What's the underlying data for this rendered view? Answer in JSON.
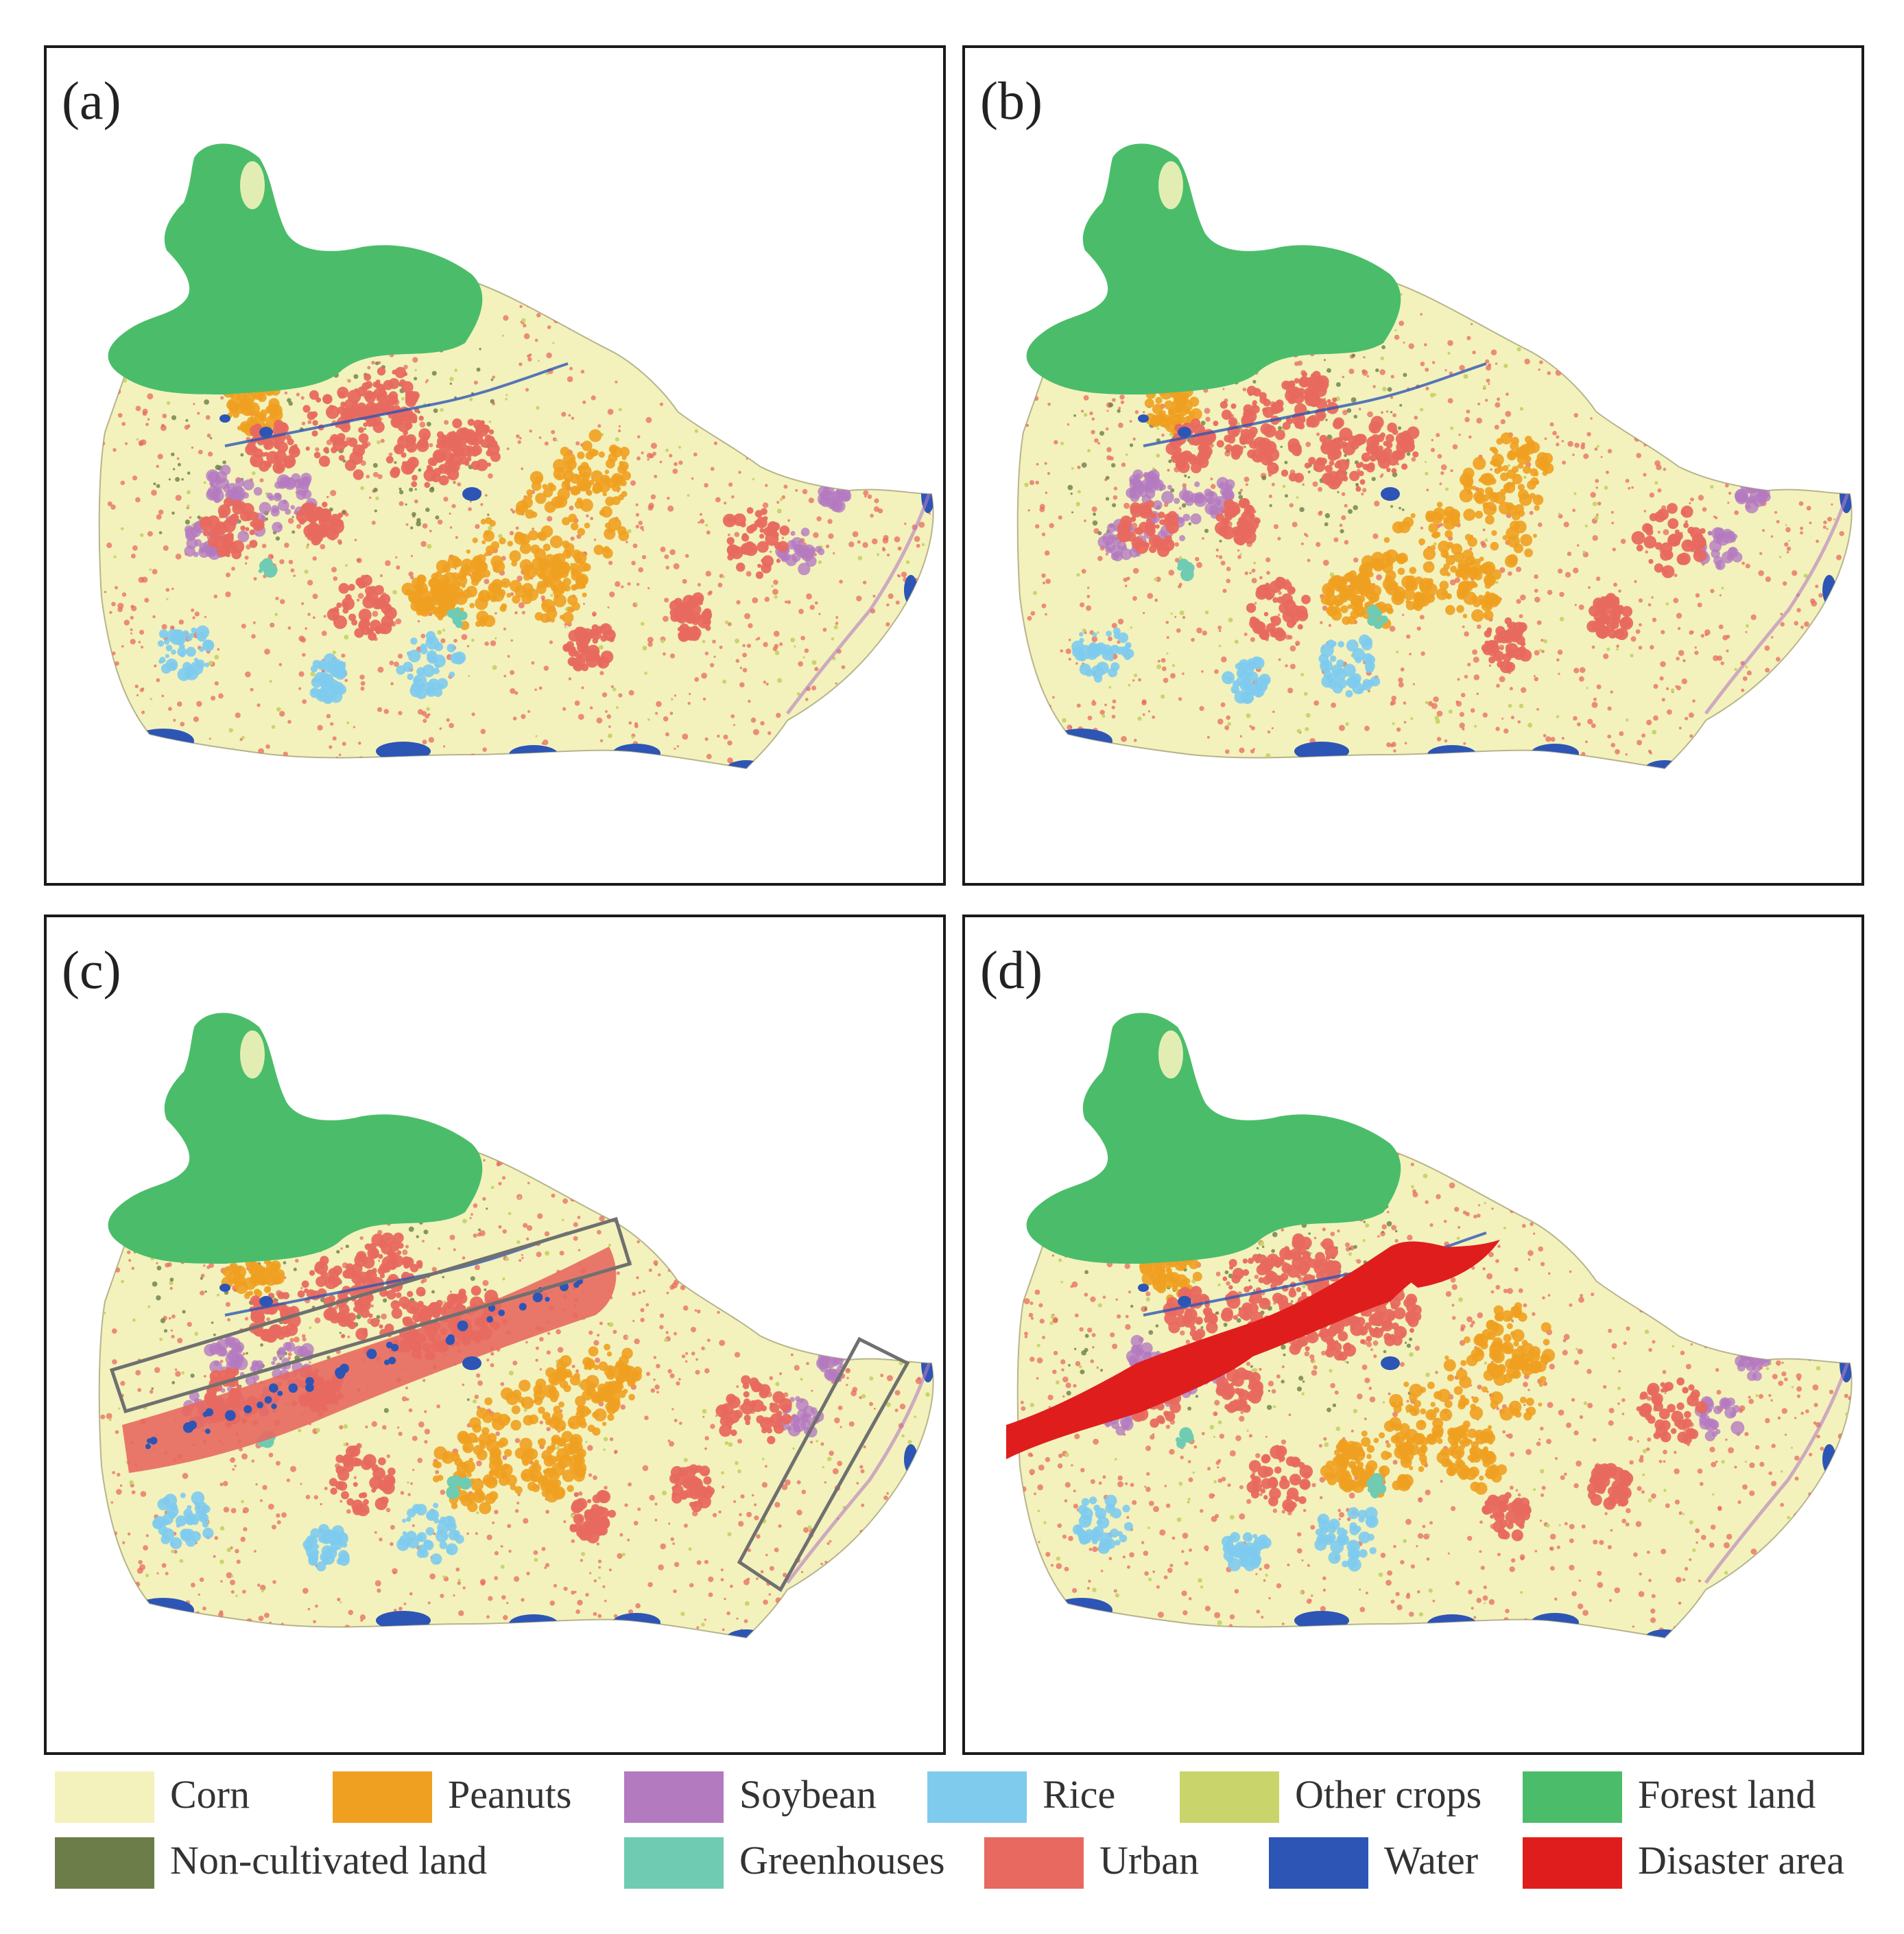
{
  "panels": [
    {
      "id": "a",
      "label": "(a)"
    },
    {
      "id": "b",
      "label": "(b)"
    },
    {
      "id": "c",
      "label": "(c)"
    },
    {
      "id": "d",
      "label": "(d)"
    }
  ],
  "legend": [
    {
      "name": "Corn",
      "color": "#f3f2bc"
    },
    {
      "name": "Peanuts",
      "color": "#f0a020"
    },
    {
      "name": "Soybean",
      "color": "#b47ac0"
    },
    {
      "name": "Rice",
      "color": "#7ecbee"
    },
    {
      "name": "Other crops",
      "color": "#c9d56a"
    },
    {
      "name": "Forest land",
      "color": "#4bbd6a"
    },
    {
      "name": "Non-cultivated land",
      "color": "#6c7d4a"
    },
    {
      "name": "Greenhouses",
      "color": "#6fcbb2"
    },
    {
      "name": "Urban",
      "color": "#e8695f"
    },
    {
      "name": "Water",
      "color": "#2d55b5"
    },
    {
      "name": "Disaster area",
      "color": "#e01d1d"
    }
  ]
}
